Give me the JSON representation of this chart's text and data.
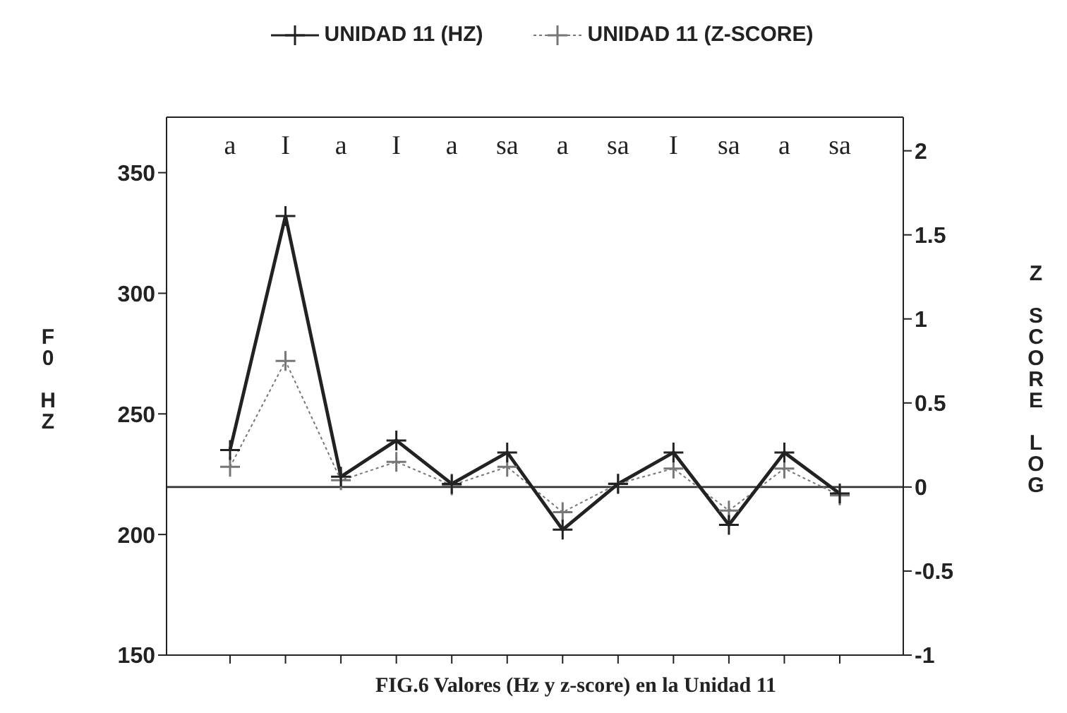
{
  "chart_data": {
    "type": "line",
    "categories": [
      "a",
      "I",
      "a",
      "I",
      "a",
      "sa",
      "a",
      "sa",
      "I",
      "sa",
      "a",
      "sa"
    ],
    "series": [
      {
        "name": "UNIDAD 11 (HZ)",
        "color": "#222222",
        "line_style": "solid",
        "values": [
          235,
          332,
          224,
          239,
          221,
          234,
          202,
          221,
          234,
          204,
          234,
          217
        ]
      },
      {
        "name": "UNIDAD 11 (Z-SCORE)",
        "color": "#777777",
        "line_style": "dotted",
        "axis": "y2",
        "values": [
          0.12,
          0.75,
          0.04,
          0.15,
          0.01,
          0.12,
          -0.15,
          0.02,
          0.11,
          -0.14,
          0.11,
          -0.05
        ]
      }
    ],
    "ylabel": "F0 HZ",
    "y2label": "Z SCORE LOG",
    "ylim": [
      150,
      373
    ],
    "yticks": [
      150,
      200,
      250,
      300,
      350
    ],
    "y2lim": [
      -1,
      2.2
    ],
    "y2ticks": [
      -1,
      -0.5,
      0,
      0.5,
      1,
      1.5,
      2
    ],
    "ref_lines": [
      {
        "axis": "y2",
        "value": 0,
        "label": null,
        "color": "#333333"
      }
    ],
    "annotations": [
      "FIG.6 Valores (Hz y z-score) en la Unidad 11"
    ],
    "marker": "cross",
    "legend": "top",
    "grid": false
  }
}
